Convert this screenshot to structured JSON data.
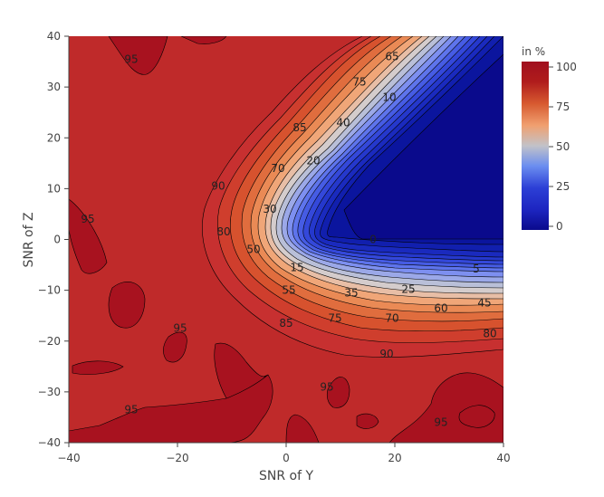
{
  "chart_data": {
    "type": "contour",
    "xlabel": "SNR of Y",
    "ylabel": "SNR of Z",
    "xlim": [
      -40,
      40
    ],
    "ylim": [
      -40,
      40
    ],
    "x_ticks": [
      -40,
      -20,
      0,
      20,
      40
    ],
    "y_ticks": [
      -40,
      -30,
      -20,
      -10,
      0,
      10,
      20,
      30,
      40
    ],
    "x_tick_labels": [
      "−40",
      "−20",
      "0",
      "20",
      "40"
    ],
    "y_tick_labels": [
      "−40",
      "−30",
      "−20",
      "−10",
      "0",
      "10",
      "20",
      "30",
      "40"
    ],
    "colorbar": {
      "title": "in %",
      "range": [
        0,
        100
      ],
      "ticks": [
        0,
        25,
        50,
        75,
        100
      ],
      "tick_labels": [
        "0",
        "25",
        "50",
        "75",
        "100"
      ],
      "colorscale": [
        "#0a0a8c",
        "#2c3fd6",
        "#6b8ef0",
        "#c2c2c8",
        "#f0a070",
        "#d75a30",
        "#b01c1c",
        "#a00f1e"
      ]
    },
    "contour_step": 5,
    "contour_labels": [
      {
        "value": "0",
        "x": 16,
        "y": 0
      },
      {
        "value": "5",
        "x": 35,
        "y": -5.8
      },
      {
        "value": "10",
        "x": 19,
        "y": 28
      },
      {
        "value": "15",
        "x": 2,
        "y": -5.5
      },
      {
        "value": "20",
        "x": 5,
        "y": 15.5
      },
      {
        "value": "25",
        "x": 22.5,
        "y": -9.8
      },
      {
        "value": "30",
        "x": -3,
        "y": 6
      },
      {
        "value": "35",
        "x": 12,
        "y": -10.5
      },
      {
        "value": "40",
        "x": 10.5,
        "y": 23
      },
      {
        "value": "45",
        "x": 36.5,
        "y": -12.5
      },
      {
        "value": "50",
        "x": -6,
        "y": -2
      },
      {
        "value": "55",
        "x": 0.5,
        "y": -10
      },
      {
        "value": "60",
        "x": 28.5,
        "y": -13.5
      },
      {
        "value": "65",
        "x": 19.5,
        "y": 36
      },
      {
        "value": "70",
        "x": -1.5,
        "y": 14
      },
      {
        "value": "70",
        "x": 19.5,
        "y": -15.5
      },
      {
        "value": "75",
        "x": 13.5,
        "y": 31
      },
      {
        "value": "75",
        "x": 9,
        "y": -15.5
      },
      {
        "value": "80",
        "x": -11.5,
        "y": 1.5
      },
      {
        "value": "80",
        "x": 37.5,
        "y": -18.5
      },
      {
        "value": "85",
        "x": 2.5,
        "y": 22
      },
      {
        "value": "85",
        "x": 0,
        "y": -16.5
      },
      {
        "value": "90",
        "x": -12.5,
        "y": 10.5
      },
      {
        "value": "90",
        "x": 18.5,
        "y": -22.5
      },
      {
        "value": "95",
        "x": -28.5,
        "y": 35.5
      },
      {
        "value": "95",
        "x": -36.5,
        "y": 4
      },
      {
        "value": "95",
        "x": -19.5,
        "y": -17.5
      },
      {
        "value": "95",
        "x": -28.5,
        "y": -33.5
      },
      {
        "value": "95",
        "x": 7.5,
        "y": -29
      },
      {
        "value": "95",
        "x": 28.5,
        "y": -36
      }
    ]
  }
}
